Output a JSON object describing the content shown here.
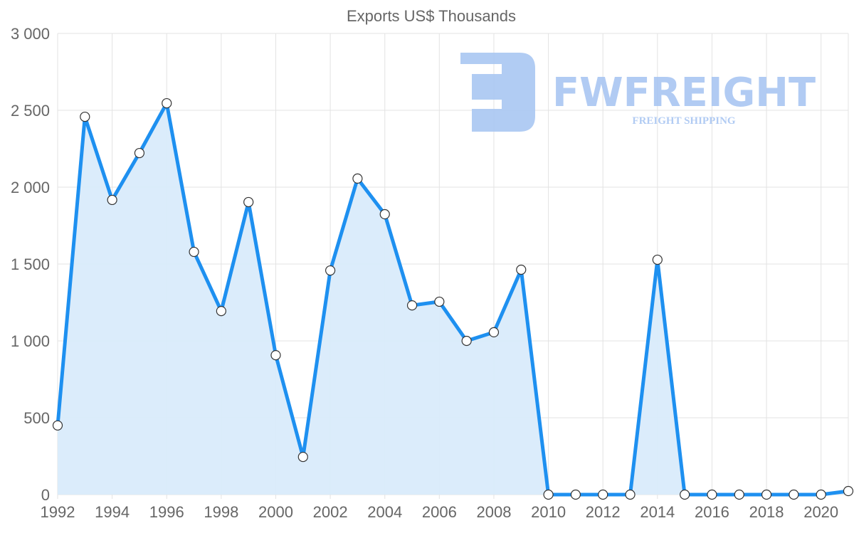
{
  "chart_data": {
    "type": "line",
    "title": "Exports US$ Thousands",
    "xlabel": "",
    "ylabel": "",
    "x": [
      1992,
      1993,
      1994,
      1995,
      1996,
      1997,
      1998,
      1999,
      2000,
      2001,
      2002,
      2003,
      2004,
      2005,
      2006,
      2007,
      2008,
      2009,
      2010,
      2011,
      2012,
      2013,
      2014,
      2015,
      2016,
      2017,
      2018,
      2019,
      2020,
      2021
    ],
    "series": [
      {
        "name": "Exports US$ Thousands",
        "values": [
          450,
          2458,
          1917,
          2222,
          2546,
          1579,
          1194,
          1903,
          907,
          245,
          1458,
          2056,
          1824,
          1231,
          1255,
          1000,
          1056,
          1463,
          0,
          0,
          0,
          0,
          1528,
          0,
          0,
          0,
          0,
          0,
          0,
          23
        ]
      }
    ],
    "xlim": [
      1992,
      2021
    ],
    "ylim": [
      0,
      3000
    ],
    "x_ticks": [
      "1992",
      "1994",
      "1996",
      "1998",
      "2000",
      "2002",
      "2004",
      "2006",
      "2008",
      "2010",
      "2012",
      "2014",
      "2016",
      "2018",
      "2020"
    ],
    "y_ticks": [
      "0",
      "500",
      "1 000",
      "1 500",
      "2 000",
      "2 500",
      "3 000"
    ],
    "grid": true,
    "colors": {
      "line": "#1e90f0",
      "fill": "#d9ebfb",
      "grid": "#e3e3e3",
      "point_fill": "#ffffff",
      "point_stroke": "#333333"
    }
  },
  "watermark": {
    "brand": "FWFREIGHT",
    "tagline": "FREIGHT SHIPPING",
    "color": "#a9c6f2"
  }
}
